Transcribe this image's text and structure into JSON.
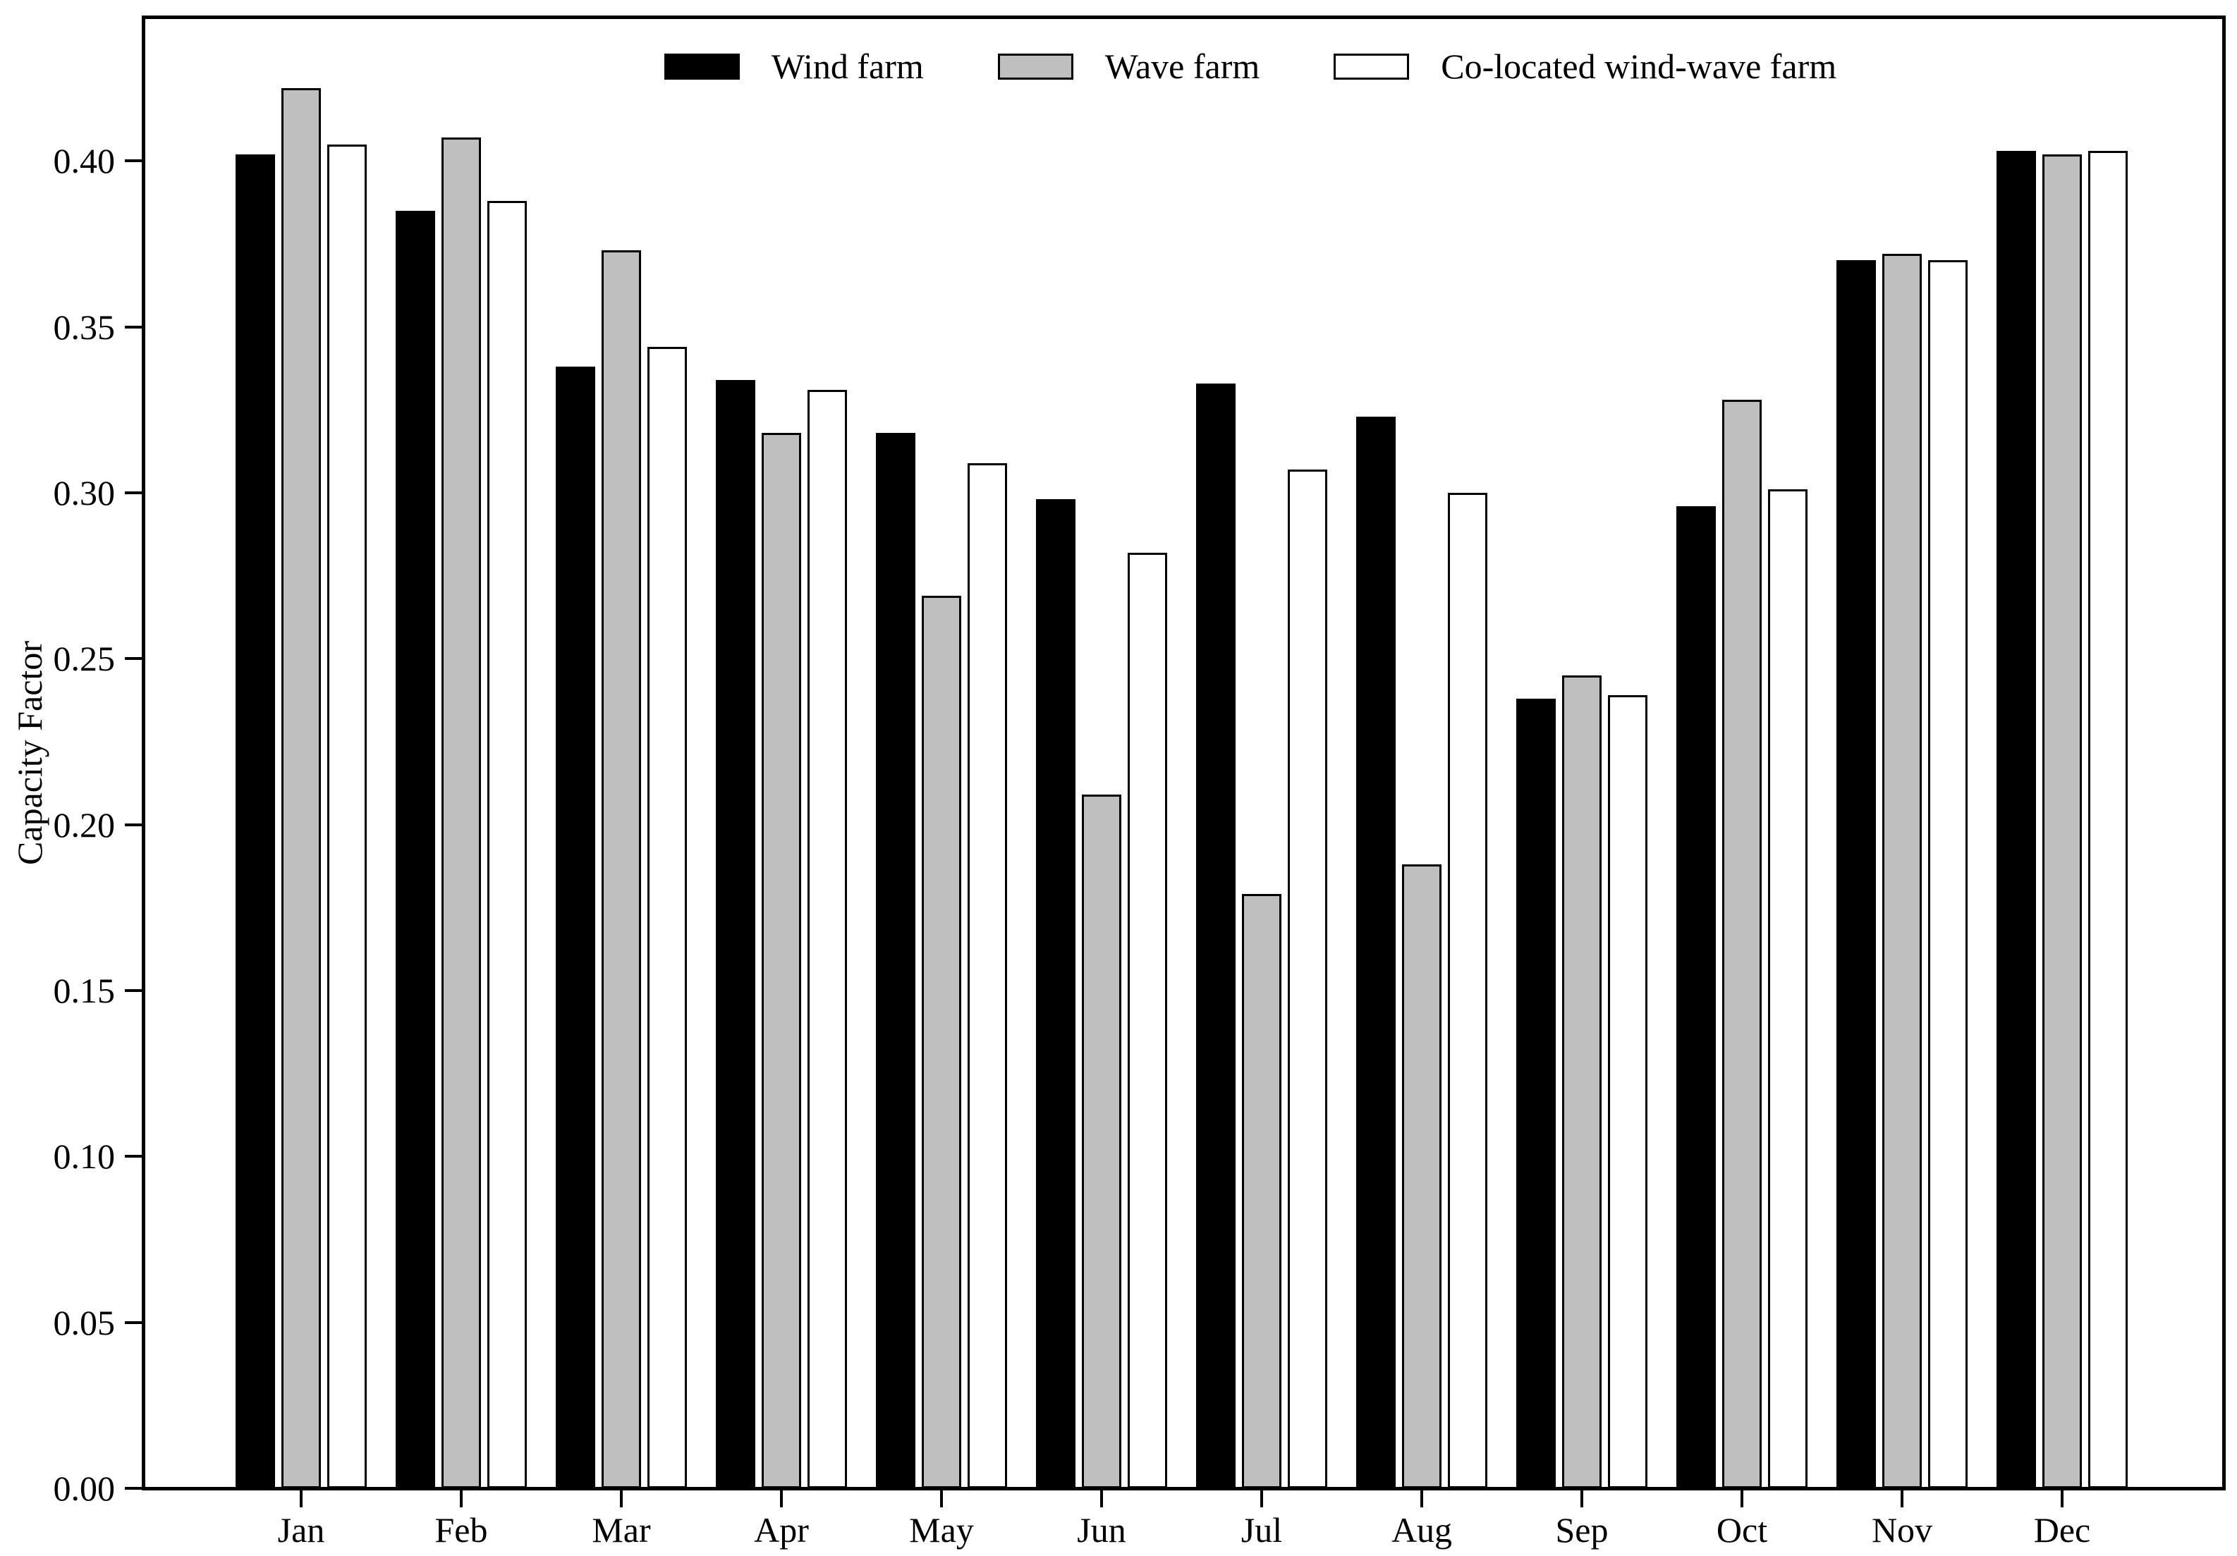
{
  "figure": {
    "background": "#ffffff",
    "axes_edge_color": "#000000"
  },
  "legend": {
    "position": "upper center",
    "items": [
      {
        "label": "Wind farm",
        "color": "#000000"
      },
      {
        "label": "Wave farm",
        "color": "#bfbfbf"
      },
      {
        "label": "Co-located wind-wave farm",
        "color": "#ffffff"
      }
    ]
  },
  "chart_data": {
    "type": "bar",
    "title": "",
    "xlabel": "",
    "ylabel": "Capacity Factor",
    "categories": [
      "Jan",
      "Feb",
      "Mar",
      "Apr",
      "May",
      "Jun",
      "Jul",
      "Aug",
      "Sep",
      "Oct",
      "Nov",
      "Dec"
    ],
    "series": [
      {
        "name": "Wind farm",
        "color": "#000000",
        "values": [
          0.402,
          0.385,
          0.338,
          0.334,
          0.318,
          0.298,
          0.333,
          0.323,
          0.238,
          0.296,
          0.37,
          0.403
        ]
      },
      {
        "name": "Wave farm",
        "color": "#bfbfbf",
        "values": [
          0.422,
          0.407,
          0.373,
          0.318,
          0.269,
          0.209,
          0.179,
          0.188,
          0.245,
          0.328,
          0.372,
          0.402
        ]
      },
      {
        "name": "Co-located wind-wave farm",
        "color": "#ffffff",
        "values": [
          0.405,
          0.388,
          0.344,
          0.331,
          0.309,
          0.282,
          0.307,
          0.3,
          0.239,
          0.301,
          0.37,
          0.403
        ]
      }
    ],
    "ylim": [
      0,
      0.4434
    ],
    "yticks": [
      0.0,
      0.05,
      0.1,
      0.15,
      0.2,
      0.25,
      0.3,
      0.35,
      0.4
    ],
    "ytick_format": "2dp",
    "grid": false,
    "legend_position": "upper center",
    "bar_edge_color": "#000000"
  }
}
